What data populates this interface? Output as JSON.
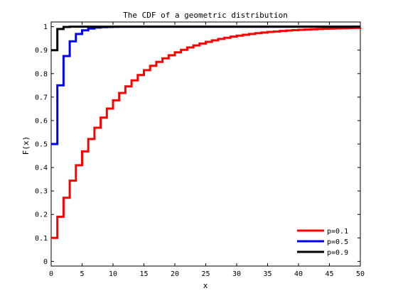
{
  "chart_data": {
    "type": "line",
    "title": "The CDF of a geometric distribution",
    "xlabel": "x",
    "ylabel": "F(x)",
    "xlim": [
      0,
      50
    ],
    "ylim": [
      -0.02,
      1.02
    ],
    "xticks": [
      0,
      5,
      10,
      15,
      20,
      25,
      30,
      35,
      40,
      45,
      50
    ],
    "yticks": [
      0,
      0.1,
      0.2,
      0.3,
      0.4,
      0.5,
      0.6,
      0.7,
      0.8,
      0.9,
      1
    ],
    "xtick_labels": [
      "0",
      "5",
      "10",
      "15",
      "20",
      "25",
      "30",
      "35",
      "40",
      "45",
      "50"
    ],
    "ytick_labels": [
      "0",
      "0.1",
      "0.2",
      "0.3",
      "0.4",
      "0.5",
      "0.6",
      "0.7",
      "0.8",
      "0.9",
      "1"
    ],
    "grid": false,
    "legend_position": "bottom-right",
    "step": true,
    "x": [
      0,
      1,
      2,
      3,
      4,
      5,
      6,
      7,
      8,
      9,
      10,
      11,
      12,
      13,
      14,
      15,
      16,
      17,
      18,
      19,
      20,
      21,
      22,
      23,
      24,
      25,
      26,
      27,
      28,
      29,
      30,
      31,
      32,
      33,
      34,
      35,
      36,
      37,
      38,
      39,
      40,
      41,
      42,
      43,
      44,
      45,
      46,
      47,
      48,
      49,
      50
    ],
    "series": [
      {
        "name": "p=0.1",
        "color": "#ff0000",
        "values": [
          0.1,
          0.19,
          0.271,
          0.3439,
          0.4095,
          0.4686,
          0.5217,
          0.5695,
          0.6126,
          0.6513,
          0.6862,
          0.7176,
          0.7458,
          0.7712,
          0.7941,
          0.8147,
          0.8332,
          0.8499,
          0.8649,
          0.8784,
          0.8906,
          0.9015,
          0.9114,
          0.9202,
          0.9282,
          0.9354,
          0.9419,
          0.9477,
          0.9529,
          0.9576,
          0.9618,
          0.9657,
          0.9691,
          0.9722,
          0.975,
          0.9775,
          0.9797,
          0.9818,
          0.9836,
          0.9852,
          0.9867,
          0.988,
          0.9892,
          0.9903,
          0.9913,
          0.9921,
          0.9929,
          0.9936,
          0.9943,
          0.9948,
          0.9954
        ]
      },
      {
        "name": "p=0.5",
        "color": "#0000ff",
        "values": [
          0.5,
          0.75,
          0.875,
          0.9375,
          0.9688,
          0.9844,
          0.9922,
          0.9961,
          0.998,
          0.999,
          0.9995,
          0.9998,
          0.9999,
          0.9999,
          1,
          1,
          1,
          1,
          1,
          1,
          1,
          1,
          1,
          1,
          1,
          1,
          1,
          1,
          1,
          1,
          1,
          1,
          1,
          1,
          1,
          1,
          1,
          1,
          1,
          1,
          1,
          1,
          1,
          1,
          1,
          1,
          1,
          1,
          1,
          1,
          1
        ]
      },
      {
        "name": "p=0.9",
        "color": "#000000",
        "values": [
          0.9,
          0.99,
          0.999,
          0.9999,
          1,
          1,
          1,
          1,
          1,
          1,
          1,
          1,
          1,
          1,
          1,
          1,
          1,
          1,
          1,
          1,
          1,
          1,
          1,
          1,
          1,
          1,
          1,
          1,
          1,
          1,
          1,
          1,
          1,
          1,
          1,
          1,
          1,
          1,
          1,
          1,
          1,
          1,
          1,
          1,
          1,
          1,
          1,
          1,
          1,
          1,
          1
        ]
      }
    ]
  }
}
